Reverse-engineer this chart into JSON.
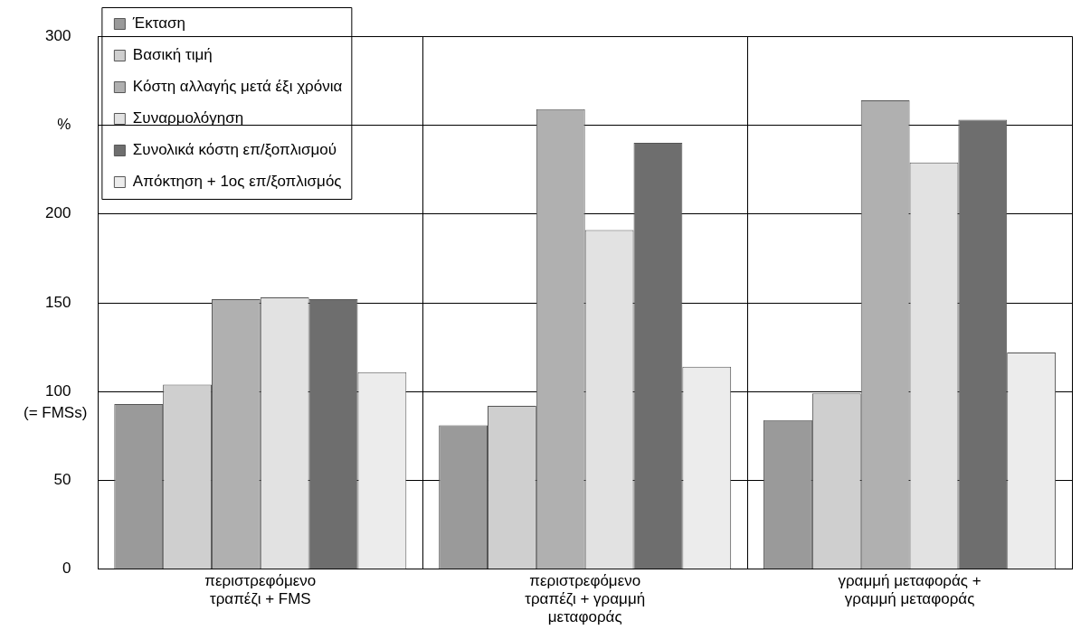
{
  "chart_data": {
    "type": "bar",
    "categories": [
      "περιστρεφόμενο τραπέζι + FMS",
      "περιστρεφόμενο τραπέζι + γραμμή μεταφοράς",
      "γραμμή μεταφοράς + γραμμή μεταφοράς"
    ],
    "series": [
      {
        "name": "Έκταση",
        "color": "#9a9a9a",
        "values": [
          93,
          81,
          84
        ]
      },
      {
        "name": "Βασική τιμή",
        "color": "#cfcfcf",
        "values": [
          104,
          92,
          99
        ]
      },
      {
        "name": "Κόστη αλλαγής μετά έξι χρόνια",
        "color": "#b0b0b0",
        "values": [
          152,
          259,
          264
        ]
      },
      {
        "name": "Συναρμολόγηση",
        "color": "#e2e2e2",
        "values": [
          153,
          191,
          229
        ]
      },
      {
        "name": "Συνολικά κόστη επ/ξοπλισμού",
        "color": "#6e6e6e",
        "values": [
          152,
          240,
          253
        ]
      },
      {
        "name": "Απόκτηση + 1ος επ/ξοπλισμός",
        "color": "#ececec",
        "values": [
          111,
          114,
          122
        ]
      }
    ],
    "ylim": [
      0,
      300
    ],
    "yticks": [
      0,
      50,
      100,
      150,
      200,
      {
        "value": 250,
        "label": "%"
      },
      300
    ],
    "annotations": [
      "(= FMSs)"
    ],
    "grid": true,
    "legend": "top left"
  }
}
